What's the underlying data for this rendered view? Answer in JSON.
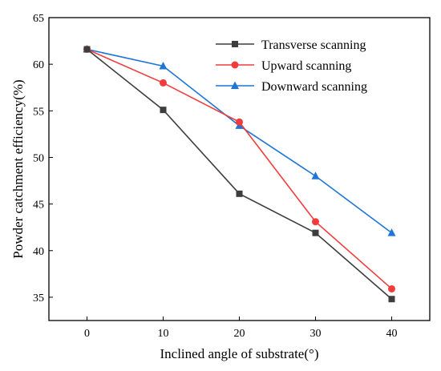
{
  "chart_data": {
    "type": "line",
    "title": "",
    "xlabel": "Inclined angle of substrate(°)",
    "ylabel": "Powder catchment efficiency(%)",
    "x": [
      0,
      10,
      20,
      30,
      40
    ],
    "xlim": [
      -5,
      45
    ],
    "ylim": [
      32.5,
      65
    ],
    "xticks": [
      "0",
      "10",
      "20",
      "30",
      "40"
    ],
    "yticks": [
      "35",
      "40",
      "45",
      "50",
      "55",
      "60",
      "65"
    ],
    "grid": false,
    "legend_position": "top-right",
    "series": [
      {
        "name": "Transverse scanning",
        "color": "#3d3d3d",
        "marker": "square",
        "values": [
          61.6,
          55.1,
          46.1,
          41.9,
          34.8
        ]
      },
      {
        "name": "Upward scanning",
        "color": "#f23c3c",
        "marker": "circle",
        "values": [
          61.6,
          58.0,
          53.8,
          43.1,
          35.9
        ]
      },
      {
        "name": "Downward scanning",
        "color": "#1f76d6",
        "marker": "triangle",
        "values": [
          61.6,
          59.8,
          53.4,
          48.0,
          41.9
        ]
      }
    ]
  }
}
